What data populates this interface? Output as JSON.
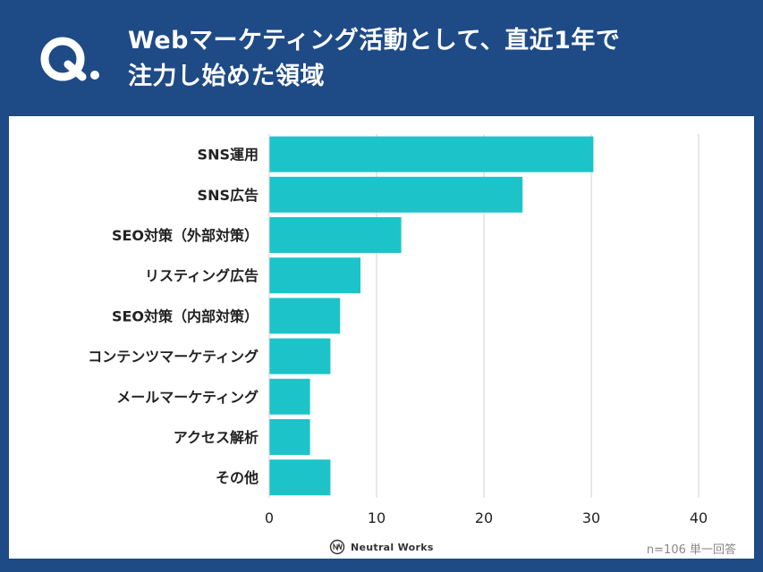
{
  "header": {
    "question_mark": "Q.",
    "title_line1": "Webマーケティング活動として、直近1年で",
    "title_line2": "注力し始めた領域"
  },
  "footer": {
    "logo_text": "Neutral Works",
    "note": "n=106 単一回答"
  },
  "colors": {
    "header_bg": "#1e4a86",
    "bar": "#1cc4c9",
    "grid": "#d0d0d0"
  },
  "chart_data": {
    "type": "bar",
    "orientation": "horizontal",
    "categories": [
      "SNS運用",
      "SNS広告",
      "SEO対策（外部対策）",
      "リスティング広告",
      "SEO対策（内部対策）",
      "コンテンツマーケティング",
      "メールマーケティング",
      "アクセス解析",
      "その他"
    ],
    "values": [
      30.2,
      23.6,
      12.3,
      8.5,
      6.6,
      5.7,
      3.8,
      3.8,
      5.7
    ],
    "xlim": [
      0,
      40
    ],
    "xticks": [
      0,
      10,
      20,
      30,
      40
    ],
    "grid": true,
    "legend": "none"
  }
}
